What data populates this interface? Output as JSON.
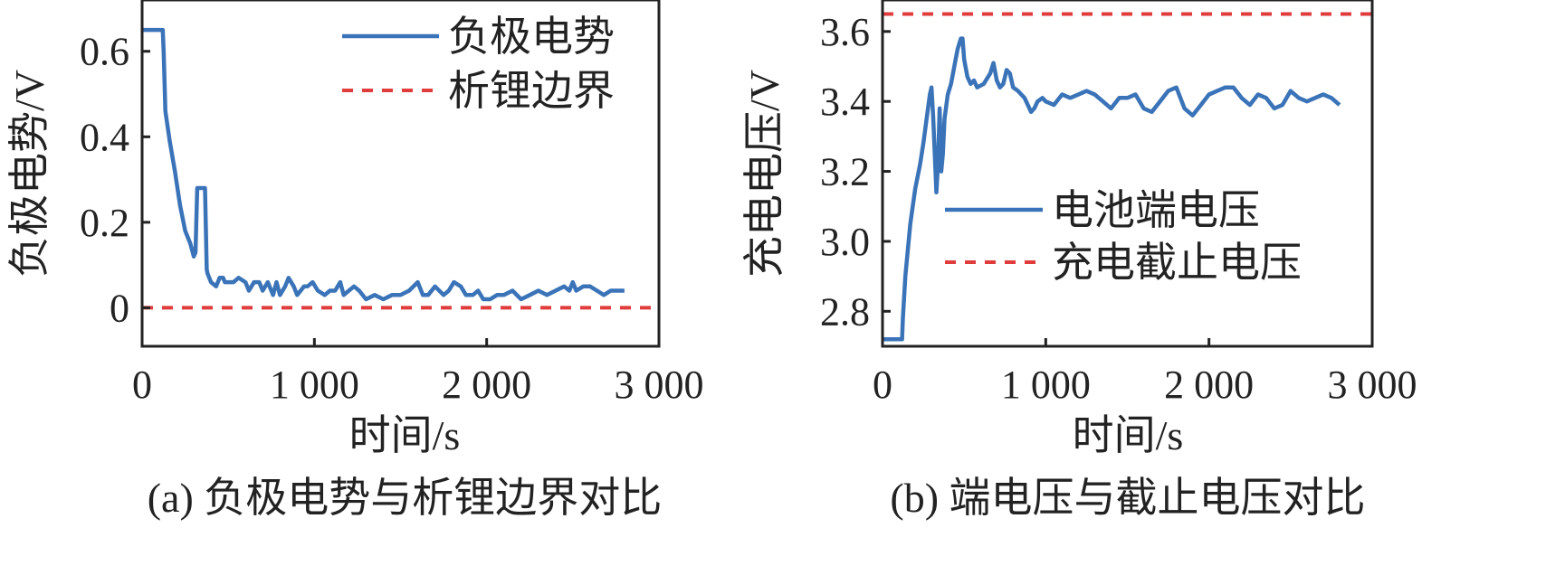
{
  "colors": {
    "line": "#3a73b8",
    "limit": "#e03c3c",
    "axis": "#222222"
  },
  "chart_data": [
    {
      "type": "line",
      "caption": "(a) 负极电势与析锂边界对比",
      "xlabel": "时间/s",
      "ylabel": "负极电势/V",
      "xlim": [
        0,
        3000
      ],
      "ylim": [
        -0.09,
        0.72
      ],
      "xticks": [
        0,
        1000,
        2000,
        3000
      ],
      "xtick_labels": [
        "0",
        "1 000",
        "2 000",
        "3 000"
      ],
      "yticks": [
        0,
        0.2,
        0.4,
        0.6
      ],
      "ytick_labels": [
        "0",
        "0.2",
        "0.4",
        "0.6"
      ],
      "grid": false,
      "legend_position": "top-right",
      "series": [
        {
          "name": "负极电势",
          "style": "solid",
          "x": [
            0,
            120,
            125,
            135,
            160,
            190,
            220,
            250,
            280,
            300,
            310,
            320,
            325,
            330,
            340,
            355,
            365,
            375,
            380,
            400,
            430,
            450,
            470,
            480,
            490,
            500,
            530,
            560,
            600,
            620,
            650,
            680,
            700,
            730,
            760,
            780,
            800,
            830,
            850,
            880,
            900,
            940,
            960,
            990,
            1020,
            1060,
            1090,
            1120,
            1150,
            1170,
            1200,
            1230,
            1260,
            1300,
            1350,
            1400,
            1450,
            1500,
            1550,
            1600,
            1630,
            1660,
            1700,
            1750,
            1780,
            1810,
            1850,
            1880,
            1920,
            1950,
            1980,
            2020,
            2060,
            2100,
            2150,
            2200,
            2250,
            2300,
            2350,
            2400,
            2450,
            2480,
            2500,
            2520,
            2560,
            2600,
            2640,
            2680,
            2720,
            2760,
            2800
          ],
          "y": [
            0.65,
            0.65,
            0.6,
            0.46,
            0.39,
            0.32,
            0.24,
            0.18,
            0.15,
            0.12,
            0.13,
            0.28,
            0.28,
            0.28,
            0.28,
            0.28,
            0.28,
            0.09,
            0.08,
            0.06,
            0.05,
            0.07,
            0.07,
            0.06,
            0.06,
            0.06,
            0.06,
            0.07,
            0.06,
            0.04,
            0.06,
            0.06,
            0.04,
            0.06,
            0.03,
            0.06,
            0.03,
            0.05,
            0.07,
            0.05,
            0.03,
            0.05,
            0.05,
            0.06,
            0.04,
            0.03,
            0.04,
            0.04,
            0.06,
            0.03,
            0.04,
            0.05,
            0.04,
            0.02,
            0.03,
            0.02,
            0.03,
            0.03,
            0.04,
            0.06,
            0.03,
            0.03,
            0.05,
            0.03,
            0.04,
            0.06,
            0.05,
            0.03,
            0.03,
            0.04,
            0.02,
            0.02,
            0.03,
            0.03,
            0.04,
            0.02,
            0.03,
            0.04,
            0.03,
            0.04,
            0.05,
            0.04,
            0.06,
            0.04,
            0.05,
            0.05,
            0.04,
            0.03,
            0.04,
            0.04,
            0.04
          ]
        },
        {
          "name": "析锂边界",
          "style": "dashed",
          "x": [
            0,
            3000
          ],
          "y": [
            0,
            0
          ]
        }
      ]
    },
    {
      "type": "line",
      "caption": "(b) 端电压与截止电压对比",
      "xlabel": "时间/s",
      "ylabel": "充电电压/V",
      "xlim": [
        0,
        3000
      ],
      "ylim": [
        2.7,
        3.69
      ],
      "xticks": [
        0,
        1000,
        2000,
        3000
      ],
      "xtick_labels": [
        "0",
        "1 000",
        "2 000",
        "3 000"
      ],
      "yticks": [
        2.8,
        3.0,
        3.2,
        3.4,
        3.6
      ],
      "ytick_labels": [
        "2.8",
        "3.0",
        "3.2",
        "3.4",
        "3.6"
      ],
      "grid": false,
      "legend_position": "center-right",
      "series": [
        {
          "name": "电池端电压",
          "style": "solid",
          "x": [
            0,
            120,
            125,
            140,
            170,
            200,
            230,
            250,
            270,
            290,
            300,
            310,
            320,
            330,
            340,
            350,
            360,
            370,
            380,
            400,
            420,
            440,
            460,
            480,
            490,
            500,
            520,
            540,
            560,
            580,
            620,
            660,
            680,
            700,
            720,
            740,
            760,
            780,
            800,
            830,
            850,
            870,
            890,
            910,
            930,
            950,
            980,
            1000,
            1050,
            1100,
            1150,
            1200,
            1250,
            1300,
            1350,
            1400,
            1450,
            1500,
            1550,
            1600,
            1650,
            1700,
            1750,
            1800,
            1850,
            1900,
            1950,
            2000,
            2050,
            2100,
            2150,
            2200,
            2250,
            2300,
            2350,
            2400,
            2450,
            2500,
            2550,
            2600,
            2650,
            2700,
            2750,
            2800
          ],
          "y": [
            2.72,
            2.72,
            2.78,
            2.9,
            3.05,
            3.15,
            3.22,
            3.28,
            3.35,
            3.42,
            3.44,
            3.36,
            3.25,
            3.14,
            3.22,
            3.38,
            3.2,
            3.25,
            3.35,
            3.42,
            3.45,
            3.5,
            3.55,
            3.58,
            3.58,
            3.52,
            3.47,
            3.45,
            3.46,
            3.44,
            3.45,
            3.48,
            3.51,
            3.46,
            3.44,
            3.45,
            3.49,
            3.48,
            3.44,
            3.43,
            3.42,
            3.41,
            3.39,
            3.37,
            3.38,
            3.4,
            3.41,
            3.4,
            3.39,
            3.42,
            3.41,
            3.42,
            3.43,
            3.42,
            3.4,
            3.38,
            3.41,
            3.41,
            3.42,
            3.38,
            3.37,
            3.4,
            3.43,
            3.44,
            3.38,
            3.36,
            3.39,
            3.42,
            3.43,
            3.44,
            3.44,
            3.41,
            3.39,
            3.42,
            3.41,
            3.38,
            3.39,
            3.43,
            3.41,
            3.4,
            3.41,
            3.42,
            3.41,
            3.39
          ]
        },
        {
          "name": "充电截止电压",
          "style": "dashed",
          "x": [
            0,
            3000
          ],
          "y": [
            3.65,
            3.65
          ]
        }
      ]
    }
  ]
}
